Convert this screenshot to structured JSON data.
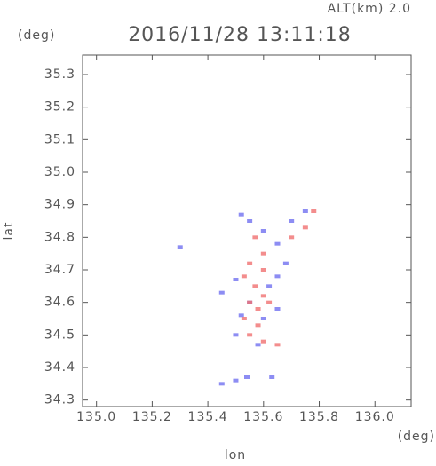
{
  "chart_data": {
    "type": "scatter",
    "title": "2016/11/28 13:11:18",
    "subtitle": "ALT(km) 2.0",
    "y_unit": "(deg)",
    "x_unit": "(deg)",
    "xlabel": "lon",
    "ylabel": "lat",
    "xlim": [
      134.95,
      136.13
    ],
    "ylim": [
      34.28,
      35.36
    ],
    "xticks": [
      {
        "value": 135.0,
        "label": "135.0"
      },
      135.2,
      135.4,
      135.6,
      135.8,
      {
        "value": 136.0,
        "label": "136.0"
      }
    ],
    "yticks": [
      34.3,
      34.4,
      34.5,
      34.6,
      34.7,
      34.8,
      34.9,
      {
        "value": 35.0,
        "label": "35.0"
      },
      35.1,
      35.2,
      35.3
    ],
    "series": [
      {
        "color": "#7070f0",
        "x": [
          135.52,
          135.55,
          135.6,
          135.65,
          135.7,
          135.75,
          135.5,
          135.45,
          135.55,
          135.65,
          135.6,
          135.5,
          135.58,
          135.45,
          135.5,
          135.3,
          135.68,
          135.62,
          135.52,
          135.65,
          135.54,
          135.63
        ],
        "values": [
          34.87,
          34.85,
          34.82,
          34.78,
          34.85,
          34.88,
          34.67,
          34.63,
          34.6,
          34.68,
          34.55,
          34.5,
          34.47,
          34.35,
          34.36,
          34.77,
          34.72,
          34.65,
          34.56,
          34.58,
          34.37,
          34.37
        ]
      },
      {
        "color": "#f07070",
        "x": [
          135.57,
          135.7,
          135.6,
          135.55,
          135.53,
          135.57,
          135.6,
          135.55,
          135.58,
          135.62,
          135.53,
          135.58,
          135.55,
          135.6,
          135.65,
          135.6,
          135.75,
          135.78
        ],
        "values": [
          34.8,
          34.8,
          34.75,
          34.72,
          34.68,
          34.65,
          34.62,
          34.6,
          34.58,
          34.6,
          34.55,
          34.53,
          34.5,
          34.48,
          34.47,
          34.7,
          34.83,
          34.88
        ]
      }
    ]
  }
}
